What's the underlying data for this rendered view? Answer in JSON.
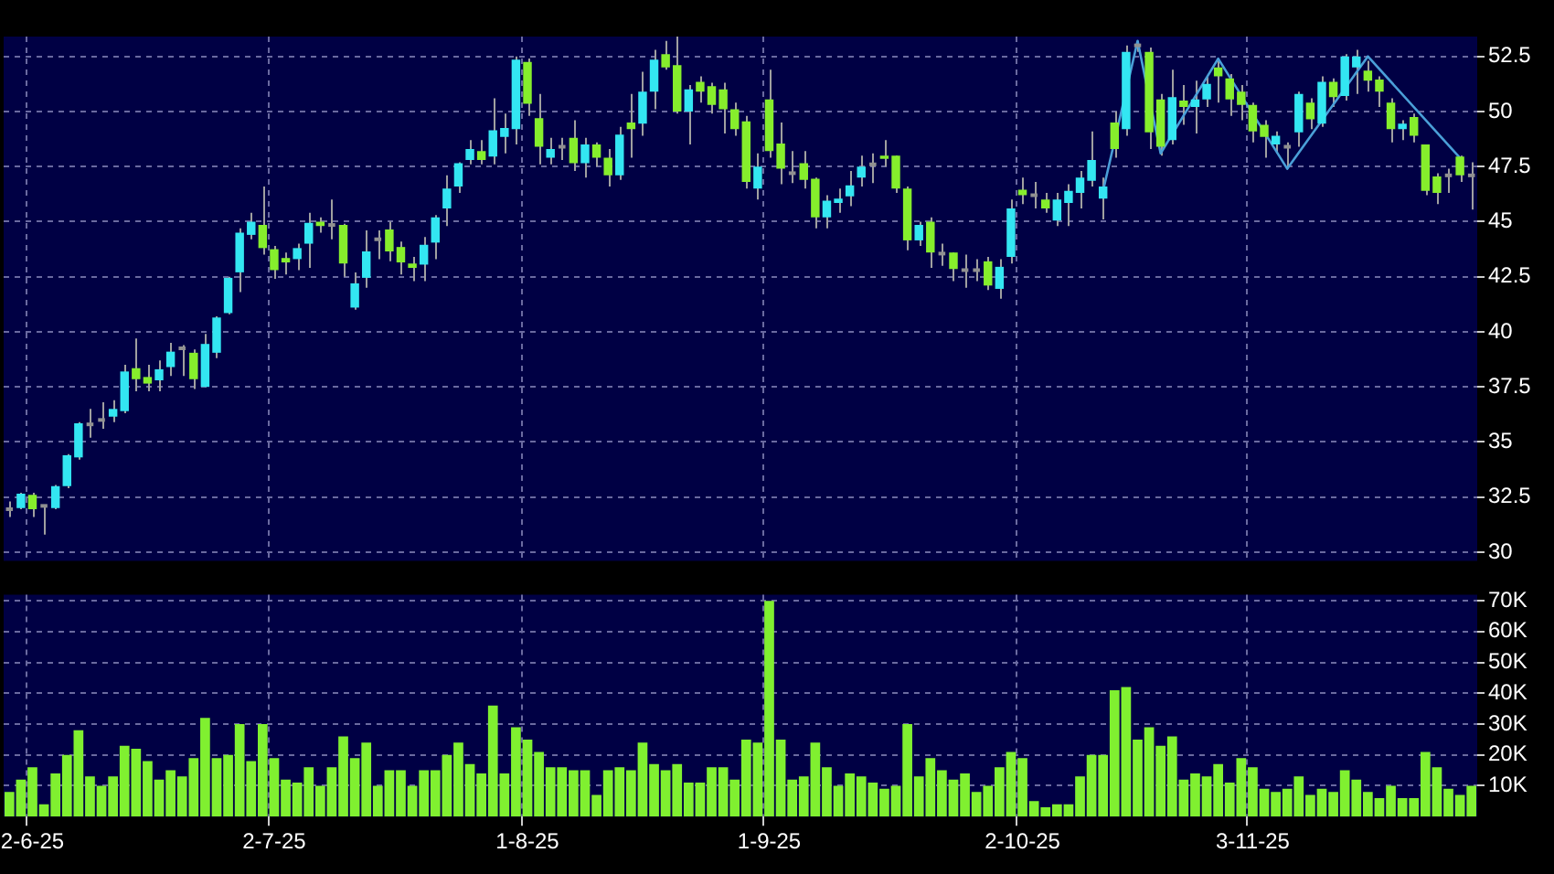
{
  "chart_data": [
    {
      "type": "candlestick",
      "categories": [
        null,
        null,
        null,
        null,
        null,
        null,
        null,
        null,
        null,
        null,
        null,
        null,
        null,
        null,
        null,
        null,
        null,
        null,
        null,
        null,
        null,
        null,
        null,
        null,
        null,
        null,
        null,
        null,
        null,
        null,
        null,
        null,
        null,
        null,
        null,
        null,
        null,
        null,
        null,
        null,
        null,
        null,
        null,
        null,
        null,
        null,
        null,
        null,
        null,
        null,
        null,
        null,
        null,
        null,
        null,
        null,
        null,
        null,
        null,
        null,
        null,
        null,
        null,
        null,
        null,
        null,
        null,
        null,
        null,
        null,
        null,
        null,
        null,
        null,
        null,
        null,
        null,
        null,
        null,
        null,
        null,
        null,
        null,
        null,
        null,
        null,
        null,
        null,
        null,
        null,
        null,
        null,
        null,
        null,
        null,
        null,
        null,
        null,
        null,
        null,
        null,
        null,
        null,
        null,
        null,
        null,
        null,
        null,
        null,
        null,
        null,
        null,
        null,
        null,
        null,
        null,
        null,
        null,
        null,
        null,
        null,
        null,
        null,
        null,
        null,
        null,
        null,
        null
      ],
      "ohlc": [
        [
          31.95,
          32.3,
          31.6,
          31.95
        ],
        [
          32,
          32.7,
          31.95,
          32.65
        ],
        [
          32.6,
          32.7,
          31.6,
          31.95
        ],
        [
          32.1,
          32.15,
          30.8,
          32.1
        ],
        [
          32,
          33.05,
          31.95,
          33
        ],
        [
          33,
          34.45,
          32.9,
          34.4
        ],
        [
          34.3,
          35.9,
          34.2,
          35.85
        ],
        [
          35.8,
          36.5,
          35.2,
          35.8
        ],
        [
          36,
          36.8,
          35.6,
          36
        ],
        [
          36.15,
          36.9,
          35.9,
          36.5
        ],
        [
          36.4,
          38.5,
          36.3,
          38.2
        ],
        [
          38.35,
          39.7,
          37.3,
          37.85
        ],
        [
          37.95,
          38.5,
          37.3,
          37.65
        ],
        [
          37.8,
          38.7,
          37.3,
          38.3
        ],
        [
          38.4,
          39.5,
          38,
          39.1
        ],
        [
          39.25,
          39.4,
          38,
          39.25
        ],
        [
          39.05,
          39.2,
          37.4,
          37.85
        ],
        [
          37.5,
          39.9,
          37.5,
          39.45
        ],
        [
          39.05,
          40.7,
          38.8,
          40.65
        ],
        [
          40.85,
          42.5,
          40.8,
          42.45
        ],
        [
          42.7,
          44.7,
          41.8,
          44.5
        ],
        [
          44.4,
          45.4,
          44.2,
          45
        ],
        [
          44.85,
          46.6,
          43.5,
          43.8
        ],
        [
          43.75,
          43.9,
          42.4,
          42.8
        ],
        [
          43.35,
          43.6,
          42.6,
          43.15
        ],
        [
          43.3,
          44,
          42.8,
          43.8
        ],
        [
          44,
          45.4,
          42.9,
          44.95
        ],
        [
          45,
          45.2,
          44.5,
          44.8
        ],
        [
          44.85,
          46,
          44.2,
          44.85
        ],
        [
          44.85,
          44.9,
          42.5,
          43.1
        ],
        [
          41.1,
          42.7,
          41,
          42.2
        ],
        [
          42.45,
          44.6,
          42,
          43.65
        ],
        [
          44.2,
          44.6,
          43.3,
          44.2
        ],
        [
          44.65,
          45,
          43.2,
          43.65
        ],
        [
          43.85,
          44.1,
          42.6,
          43.15
        ],
        [
          43.1,
          43.4,
          42.3,
          42.9
        ],
        [
          43.05,
          44.3,
          42.3,
          43.95
        ],
        [
          44.05,
          45.3,
          43.3,
          45.2
        ],
        [
          45.6,
          47.1,
          44.8,
          46.5
        ],
        [
          46.6,
          47.7,
          46.3,
          47.65
        ],
        [
          47.8,
          48.7,
          47.6,
          48.3
        ],
        [
          48.2,
          48.7,
          47.6,
          47.8
        ],
        [
          47.95,
          50.6,
          47.6,
          49.15
        ],
        [
          48.85,
          49.9,
          48.1,
          49.25
        ],
        [
          49.2,
          52.5,
          48.5,
          52.35
        ],
        [
          52.25,
          52.4,
          49.8,
          50.35
        ],
        [
          49.7,
          50.8,
          47.6,
          48.4
        ],
        [
          47.9,
          48.8,
          47.6,
          48.3
        ],
        [
          48.4,
          48.8,
          47.8,
          48.4
        ],
        [
          48.8,
          49.6,
          47.3,
          47.65
        ],
        [
          47.65,
          48.8,
          47,
          48.5
        ],
        [
          48.5,
          48.6,
          47.5,
          47.9
        ],
        [
          47.9,
          48.3,
          46.6,
          47.1
        ],
        [
          47.1,
          49.3,
          46.9,
          48.95
        ],
        [
          49.5,
          50.8,
          47.9,
          49.2
        ],
        [
          49.45,
          51.8,
          48.9,
          50.9
        ],
        [
          50.9,
          52.8,
          50.1,
          52.35
        ],
        [
          52.6,
          53.2,
          51.9,
          52
        ],
        [
          52.1,
          53.4,
          49.9,
          50
        ],
        [
          50,
          51.2,
          48.5,
          51
        ],
        [
          51.35,
          51.6,
          50.4,
          50.9
        ],
        [
          51.15,
          51.3,
          49.9,
          50.3
        ],
        [
          51,
          51.3,
          49,
          50.1
        ],
        [
          50.1,
          50.4,
          48.9,
          49.2
        ],
        [
          49.55,
          49.8,
          46.5,
          46.8
        ],
        [
          46.5,
          48.1,
          46,
          47.5
        ],
        [
          50.55,
          51.9,
          47.9,
          48.2
        ],
        [
          48.55,
          49.5,
          46.7,
          47.4
        ],
        [
          47.2,
          48.2,
          46.75,
          47.2
        ],
        [
          47.65,
          48.2,
          46.5,
          46.9
        ],
        [
          46.95,
          47,
          44.7,
          45.2
        ],
        [
          45.2,
          46.2,
          44.7,
          45.95
        ],
        [
          45.85,
          46.5,
          45.4,
          46.05
        ],
        [
          46.15,
          47.3,
          45.7,
          46.65
        ],
        [
          47,
          48,
          46.6,
          47.5
        ],
        [
          47.6,
          48.1,
          46.75,
          47.6
        ],
        [
          48,
          48.7,
          47.5,
          47.85
        ],
        [
          48,
          48,
          46.3,
          46.5
        ],
        [
          46.5,
          46.6,
          43.7,
          44.15
        ],
        [
          44.15,
          45,
          43.9,
          44.85
        ],
        [
          45,
          45.2,
          42.9,
          43.6
        ],
        [
          43.55,
          44,
          43,
          43.55
        ],
        [
          43.6,
          43.6,
          42.3,
          42.85
        ],
        [
          42.8,
          43.5,
          42,
          42.8
        ],
        [
          42.8,
          43.3,
          42.3,
          42.8
        ],
        [
          43.2,
          43.4,
          41.9,
          42.1
        ],
        [
          41.95,
          43.3,
          41.5,
          42.95
        ],
        [
          43.4,
          46,
          43.1,
          45.6
        ],
        [
          46.45,
          47,
          45.8,
          46.2
        ],
        [
          46.2,
          46.8,
          45.6,
          46.2
        ],
        [
          46,
          46.3,
          45.4,
          45.6
        ],
        [
          45.05,
          46.3,
          44.8,
          46
        ],
        [
          45.85,
          46.7,
          44.8,
          46.4
        ],
        [
          46.3,
          47.3,
          45.6,
          47
        ],
        [
          46.85,
          49.1,
          46.6,
          47.8
        ],
        [
          46.05,
          47,
          45.1,
          46.6
        ],
        [
          49.5,
          50,
          47.9,
          48.3
        ],
        [
          49.2,
          53,
          48.9,
          52.7
        ],
        [
          53,
          53.2,
          52.7,
          53
        ],
        [
          52.7,
          52.9,
          48.3,
          49.05
        ],
        [
          50.55,
          50.8,
          48,
          48.4
        ],
        [
          48.7,
          51.9,
          48.5,
          50.65
        ],
        [
          50.5,
          51.2,
          49.4,
          50.2
        ],
        [
          50.2,
          51.4,
          49,
          50.55
        ],
        [
          50.55,
          51.6,
          50.2,
          51.25
        ],
        [
          52,
          52.3,
          50.4,
          51.6
        ],
        [
          51.5,
          51.7,
          49.8,
          50.55
        ],
        [
          50.9,
          51.2,
          49.6,
          50.3
        ],
        [
          50.3,
          50.4,
          48.6,
          49.1
        ],
        [
          49.4,
          49.6,
          47.9,
          48.85
        ],
        [
          48.5,
          49.1,
          48.1,
          48.9
        ],
        [
          48.4,
          48.6,
          47.4,
          48.4
        ],
        [
          49.05,
          50.9,
          48.4,
          50.8
        ],
        [
          50.4,
          50.6,
          49.2,
          49.65
        ],
        [
          49.45,
          51.6,
          49.3,
          51.35
        ],
        [
          51.35,
          51.5,
          50.2,
          50.65
        ],
        [
          50.7,
          52.6,
          50.5,
          52.5
        ],
        [
          52,
          52.8,
          50.8,
          52.5
        ],
        [
          51.85,
          52.3,
          50.9,
          51.4
        ],
        [
          51.45,
          51.6,
          50.2,
          50.9
        ],
        [
          50.4,
          50.6,
          48.6,
          49.2
        ],
        [
          49.2,
          49.6,
          48.7,
          49.45
        ],
        [
          49.75,
          49.9,
          48.6,
          48.9
        ],
        [
          48.5,
          48.5,
          46.2,
          46.4
        ],
        [
          47.05,
          47.2,
          45.8,
          46.3
        ],
        [
          47.1,
          47.4,
          46.3,
          47.1
        ],
        [
          47.95,
          48,
          46.8,
          47.1
        ],
        [
          47.1,
          47.7,
          45.55,
          47.1
        ]
      ],
      "colors": [
        "#909090",
        "#33e6f2",
        "#86ee2c",
        "#909090",
        "#33e6f2",
        "#33e6f2",
        "#33e6f2",
        "#909090",
        "#909090",
        "#33e6f2",
        "#33e6f2",
        "#86ee2c",
        "#86ee2c",
        "#33e6f2",
        "#33e6f2",
        "#909090",
        "#86ee2c",
        "#33e6f2",
        "#33e6f2",
        "#33e6f2",
        "#33e6f2",
        "#33e6f2",
        "#86ee2c",
        "#86ee2c",
        "#86ee2c",
        "#33e6f2",
        "#33e6f2",
        "#86ee2c",
        "#909090",
        "#86ee2c",
        "#33e6f2",
        "#33e6f2",
        "#909090",
        "#86ee2c",
        "#86ee2c",
        "#86ee2c",
        "#33e6f2",
        "#33e6f2",
        "#33e6f2",
        "#33e6f2",
        "#33e6f2",
        "#86ee2c",
        "#33e6f2",
        "#33e6f2",
        "#33e6f2",
        "#86ee2c",
        "#86ee2c",
        "#33e6f2",
        "#909090",
        "#86ee2c",
        "#33e6f2",
        "#86ee2c",
        "#86ee2c",
        "#33e6f2",
        "#86ee2c",
        "#33e6f2",
        "#33e6f2",
        "#86ee2c",
        "#86ee2c",
        "#33e6f2",
        "#86ee2c",
        "#86ee2c",
        "#86ee2c",
        "#86ee2c",
        "#86ee2c",
        "#33e6f2",
        "#86ee2c",
        "#86ee2c",
        "#909090",
        "#86ee2c",
        "#86ee2c",
        "#33e6f2",
        "#33e6f2",
        "#33e6f2",
        "#33e6f2",
        "#909090",
        "#86ee2c",
        "#86ee2c",
        "#86ee2c",
        "#33e6f2",
        "#86ee2c",
        "#909090",
        "#86ee2c",
        "#909090",
        "#909090",
        "#86ee2c",
        "#33e6f2",
        "#33e6f2",
        "#86ee2c",
        "#909090",
        "#86ee2c",
        "#33e6f2",
        "#33e6f2",
        "#33e6f2",
        "#33e6f2",
        "#33e6f2",
        "#86ee2c",
        "#33e6f2",
        "#909090",
        "#86ee2c",
        "#86ee2c",
        "#33e6f2",
        "#86ee2c",
        "#33e6f2",
        "#33e6f2",
        "#86ee2c",
        "#86ee2c",
        "#86ee2c",
        "#86ee2c",
        "#86ee2c",
        "#33e6f2",
        "#909090",
        "#33e6f2",
        "#86ee2c",
        "#33e6f2",
        "#86ee2c",
        "#33e6f2",
        "#33e6f2",
        "#86ee2c",
        "#86ee2c",
        "#86ee2c",
        "#33e6f2",
        "#86ee2c",
        "#86ee2c",
        "#86ee2c",
        "#909090",
        "#86ee2c",
        "#909090"
      ],
      "series": [
        {
          "type": "line",
          "color": "#4a9fd8",
          "values": [
            null,
            null,
            null,
            null,
            null,
            null,
            null,
            null,
            null,
            null,
            null,
            null,
            null,
            null,
            null,
            null,
            null,
            null,
            null,
            null,
            null,
            null,
            null,
            null,
            null,
            null,
            null,
            null,
            null,
            null,
            null,
            null,
            null,
            null,
            null,
            null,
            null,
            null,
            null,
            null,
            null,
            null,
            null,
            null,
            null,
            null,
            null,
            null,
            null,
            null,
            null,
            null,
            null,
            null,
            null,
            null,
            null,
            null,
            null,
            null,
            null,
            null,
            null,
            null,
            null,
            null,
            null,
            null,
            null,
            null,
            null,
            null,
            null,
            null,
            null,
            null,
            null,
            null,
            null,
            null,
            null,
            null,
            null,
            null,
            null,
            null,
            null,
            null,
            null,
            null,
            null,
            null,
            null,
            null,
            null,
            46.4,
            null,
            null,
            53.2,
            null,
            48.1,
            null,
            null,
            null,
            null,
            52.4,
            null,
            null,
            null,
            null,
            null,
            47.4,
            null,
            null,
            null,
            null,
            null,
            null,
            52.5,
            null,
            null,
            null,
            null,
            null,
            null,
            null,
            47.9,
            null
          ]
        }
      ],
      "ylim": [
        29.6,
        53.4
      ],
      "yticks": [
        30,
        32.5,
        35,
        37.5,
        40,
        42.5,
        45,
        47.5,
        50,
        52.5
      ],
      "grid": true,
      "tick_labels": "y"
    },
    {
      "type": "bar",
      "categories": [
        null,
        null,
        "2-6-25",
        null,
        null,
        null,
        null,
        null,
        null,
        null,
        null,
        null,
        null,
        null,
        null,
        null,
        null,
        null,
        null,
        null,
        null,
        null,
        null,
        "2-7-25",
        null,
        null,
        null,
        null,
        null,
        null,
        null,
        null,
        null,
        null,
        null,
        null,
        null,
        null,
        null,
        null,
        null,
        null,
        null,
        null,
        null,
        "1-8-25",
        null,
        null,
        null,
        null,
        null,
        null,
        null,
        null,
        null,
        null,
        null,
        null,
        null,
        null,
        null,
        null,
        null,
        null,
        null,
        null,
        "1-9-25",
        null,
        null,
        null,
        null,
        null,
        null,
        null,
        null,
        null,
        null,
        null,
        null,
        null,
        null,
        null,
        null,
        null,
        null,
        null,
        null,
        null,
        "2-10-25",
        null,
        null,
        null,
        null,
        null,
        null,
        null,
        null,
        null,
        null,
        null,
        null,
        null,
        null,
        null,
        null,
        null,
        null,
        null,
        "3-11-25",
        null,
        null,
        null,
        null,
        null,
        null,
        null,
        null,
        null,
        null,
        null,
        null,
        null,
        null,
        null,
        null,
        null,
        null,
        null
      ],
      "values": [
        8000,
        12000,
        16000,
        4000,
        14000,
        20000,
        28000,
        13000,
        10000,
        13000,
        23000,
        22000,
        18000,
        12000,
        15000,
        13000,
        19000,
        32000,
        19000,
        20000,
        30000,
        18000,
        30000,
        19000,
        12000,
        11000,
        16000,
        10000,
        16000,
        26000,
        19000,
        24000,
        10000,
        15000,
        15000,
        10000,
        15000,
        15000,
        20000,
        24000,
        17000,
        14000,
        36000,
        14000,
        29000,
        25000,
        21000,
        16000,
        16000,
        15000,
        15000,
        7000,
        15000,
        16000,
        15000,
        24000,
        17000,
        15000,
        17000,
        11000,
        11000,
        16000,
        16000,
        12000,
        25000,
        24000,
        70000,
        25000,
        12000,
        13000,
        24000,
        16000,
        10000,
        14000,
        13000,
        11000,
        9000,
        10000,
        30000,
        13000,
        19000,
        15000,
        12000,
        14000,
        8000,
        10000,
        16000,
        21000,
        19000,
        5000,
        3000,
        4000,
        4000,
        13000,
        20000,
        20000,
        41000,
        42000,
        25000,
        29000,
        23000,
        26000,
        12000,
        14000,
        13000,
        17000,
        11000,
        19000,
        16000,
        9000,
        8000,
        9000,
        13000,
        7000,
        9000,
        8000,
        15000,
        12000,
        8000,
        6000,
        10000,
        6000,
        6000,
        21000,
        16000,
        9000,
        7000,
        10000
      ],
      "color": "#80f030",
      "ylim": [
        0,
        72000
      ],
      "yticks": [
        {
          "value": 10000,
          "label": "10K"
        },
        {
          "value": 20000,
          "label": "20K"
        },
        {
          "value": 30000,
          "label": "30K"
        },
        {
          "value": 40000,
          "label": "40K"
        },
        {
          "value": 50000,
          "label": "50K"
        },
        {
          "value": 60000,
          "label": "60K"
        },
        {
          "value": 70000,
          "label": "70K"
        }
      ],
      "grid": true
    }
  ]
}
